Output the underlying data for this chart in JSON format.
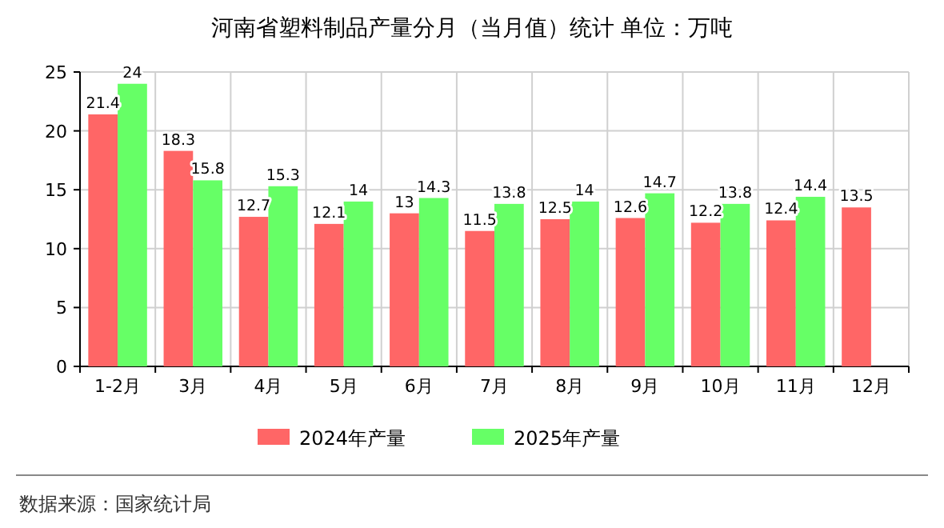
{
  "chart_data": {
    "type": "bar",
    "title": "河南省塑料制品产量分月（当月值）统计 单位：万吨",
    "categories": [
      "1-2月",
      "3月",
      "4月",
      "5月",
      "6月",
      "7月",
      "8月",
      "9月",
      "10月",
      "11月",
      "12月"
    ],
    "series": [
      {
        "name": "2024年产量",
        "color": "#ff6666",
        "values": [
          21.4,
          18.3,
          12.7,
          12.1,
          13,
          11.5,
          12.5,
          12.6,
          12.2,
          12.4,
          13.5
        ]
      },
      {
        "name": "2025年产量",
        "color": "#66ff66",
        "values": [
          24,
          15.8,
          15.3,
          14,
          14.3,
          13.8,
          14,
          14.7,
          13.8,
          14.4,
          null
        ]
      }
    ],
    "ylim": [
      0,
      25
    ],
    "yticks": [
      0,
      5,
      10,
      15,
      20,
      25
    ],
    "grid": true,
    "legend": "bottom",
    "data_labels": true,
    "annotations": [
      "数据来源：国家统计局"
    ]
  }
}
